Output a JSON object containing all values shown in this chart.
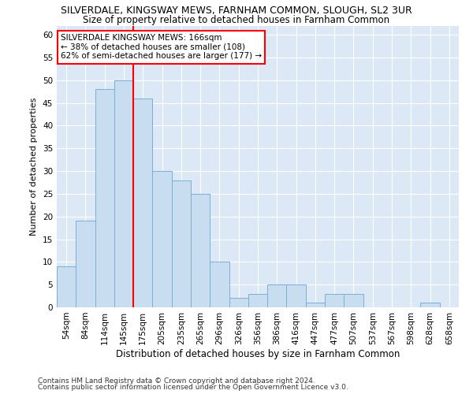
{
  "title": "SILVERDALE, KINGSWAY MEWS, FARNHAM COMMON, SLOUGH, SL2 3UR",
  "subtitle": "Size of property relative to detached houses in Farnham Common",
  "xlabel": "Distribution of detached houses by size in Farnham Common",
  "ylabel": "Number of detached properties",
  "categories": [
    "54sqm",
    "84sqm",
    "114sqm",
    "145sqm",
    "175sqm",
    "205sqm",
    "235sqm",
    "265sqm",
    "296sqm",
    "326sqm",
    "356sqm",
    "386sqm",
    "416sqm",
    "447sqm",
    "477sqm",
    "507sqm",
    "537sqm",
    "567sqm",
    "598sqm",
    "628sqm",
    "658sqm"
  ],
  "values": [
    9,
    19,
    48,
    50,
    46,
    30,
    28,
    25,
    10,
    2,
    3,
    5,
    5,
    1,
    3,
    3,
    0,
    0,
    0,
    1,
    0
  ],
  "bar_color": "#c9ddf0",
  "bar_edge_color": "#7bafd4",
  "vline_color": "red",
  "annotation_text": "SILVERDALE KINGSWAY MEWS: 166sqm\n← 38% of detached houses are smaller (108)\n62% of semi-detached houses are larger (177) →",
  "annotation_box_color": "white",
  "annotation_box_edge": "red",
  "ylim": [
    0,
    62
  ],
  "yticks": [
    0,
    5,
    10,
    15,
    20,
    25,
    30,
    35,
    40,
    45,
    50,
    55,
    60
  ],
  "bg_color": "#dce8f5",
  "plot_bg_color": "#dce8f5",
  "grid_color": "white",
  "footer1": "Contains HM Land Registry data © Crown copyright and database right 2024.",
  "footer2": "Contains public sector information licensed under the Open Government Licence v3.0.",
  "title_fontsize": 9,
  "subtitle_fontsize": 8.5,
  "xlabel_fontsize": 8.5,
  "ylabel_fontsize": 8,
  "tick_fontsize": 7.5,
  "footer_fontsize": 6.5
}
